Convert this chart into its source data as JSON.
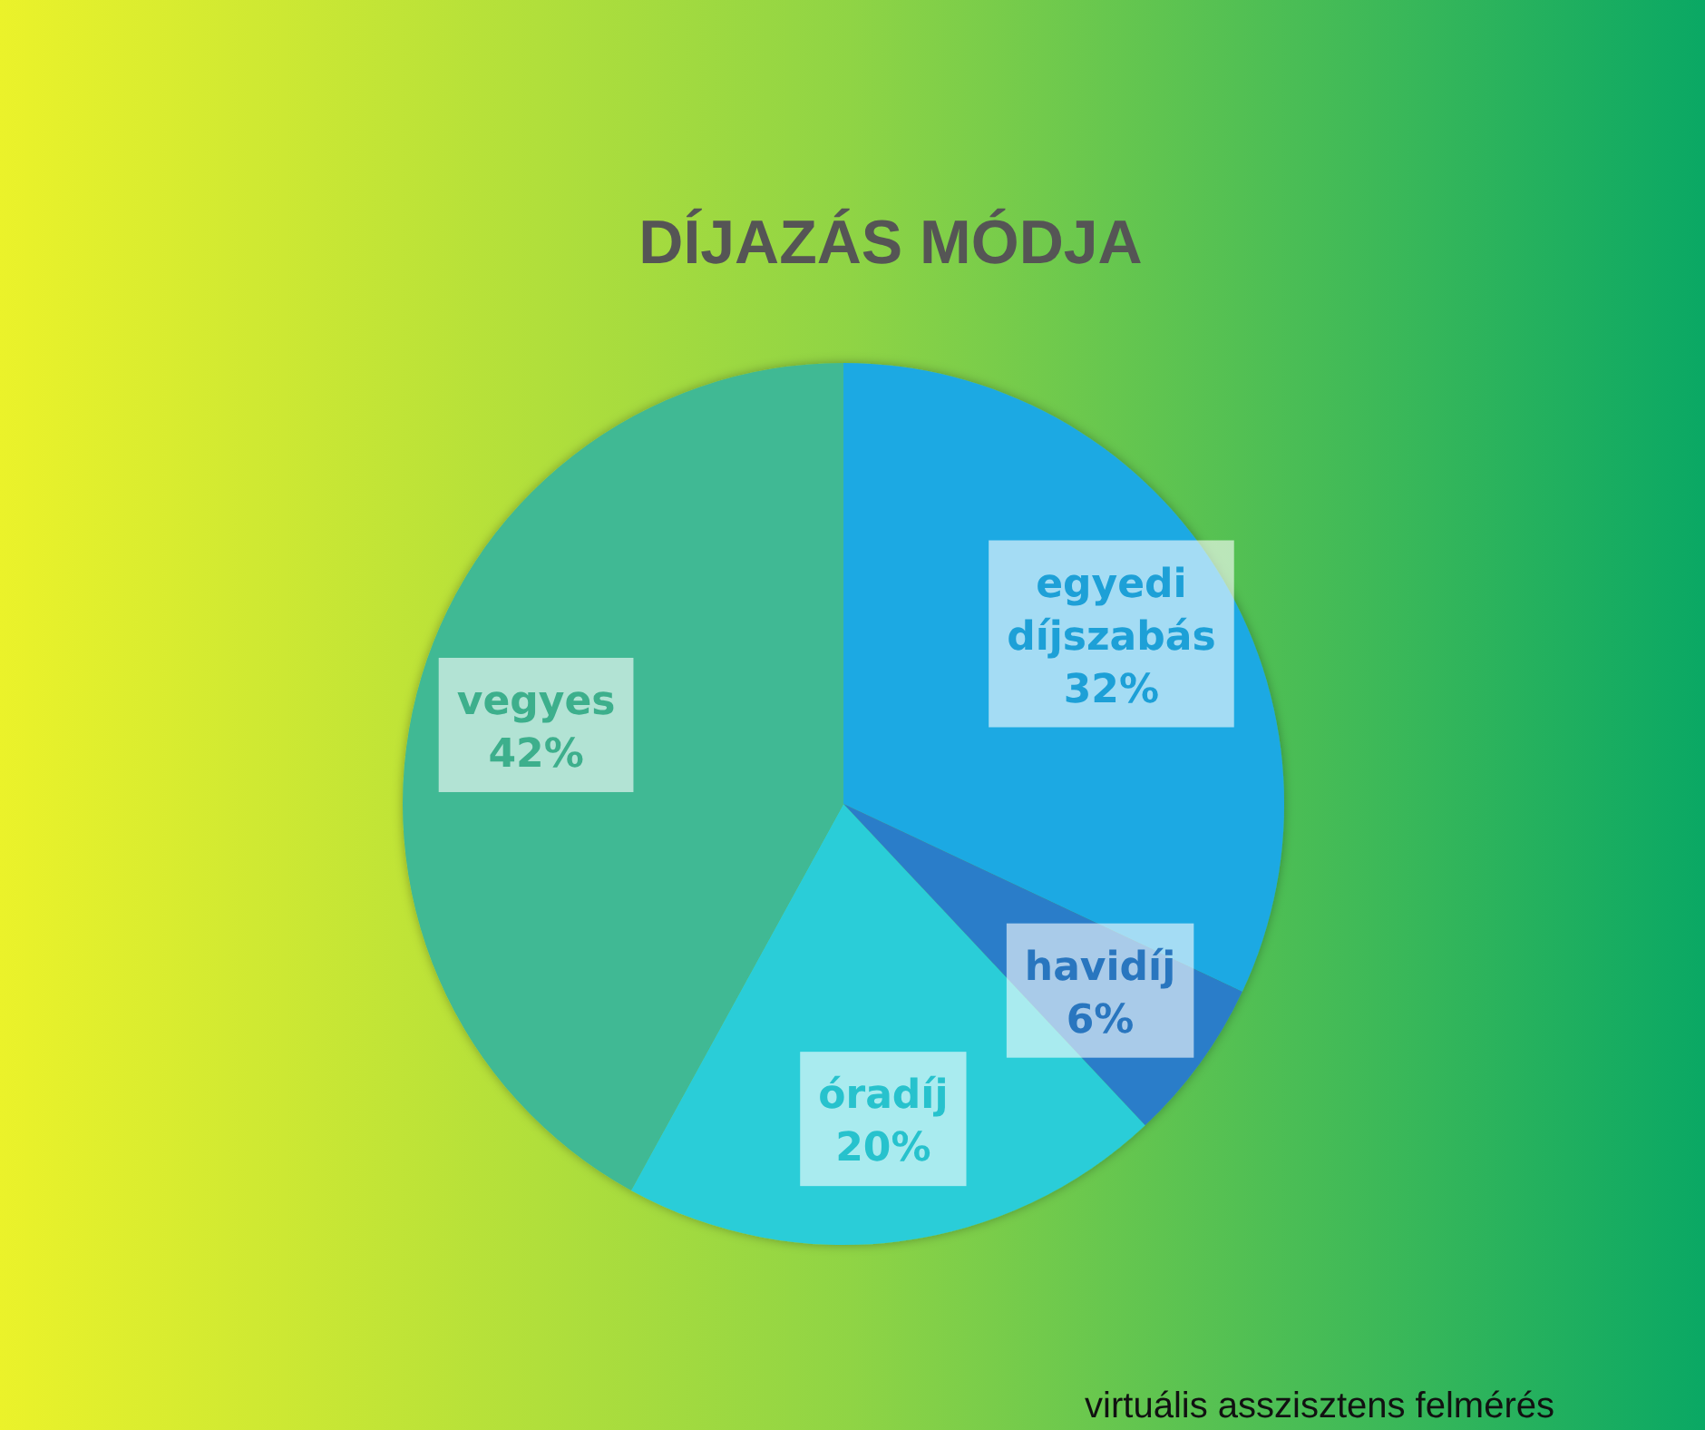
{
  "chart_data": {
    "type": "pie",
    "title": "DÍJAZÁS MÓDJA",
    "categories": [
      "egyedi díjszabás",
      "havidíj",
      "óradíj",
      "vegyes"
    ],
    "values": [
      32,
      6,
      20,
      42
    ],
    "colors": [
      "#1fa9e3",
      "#2b7dc9",
      "#29cdd8",
      "#40b994"
    ],
    "value_labels": [
      "32%",
      "6%",
      "20%",
      "42%"
    ],
    "annotations": [
      "virtuális asszisztens felmérés"
    ]
  }
}
